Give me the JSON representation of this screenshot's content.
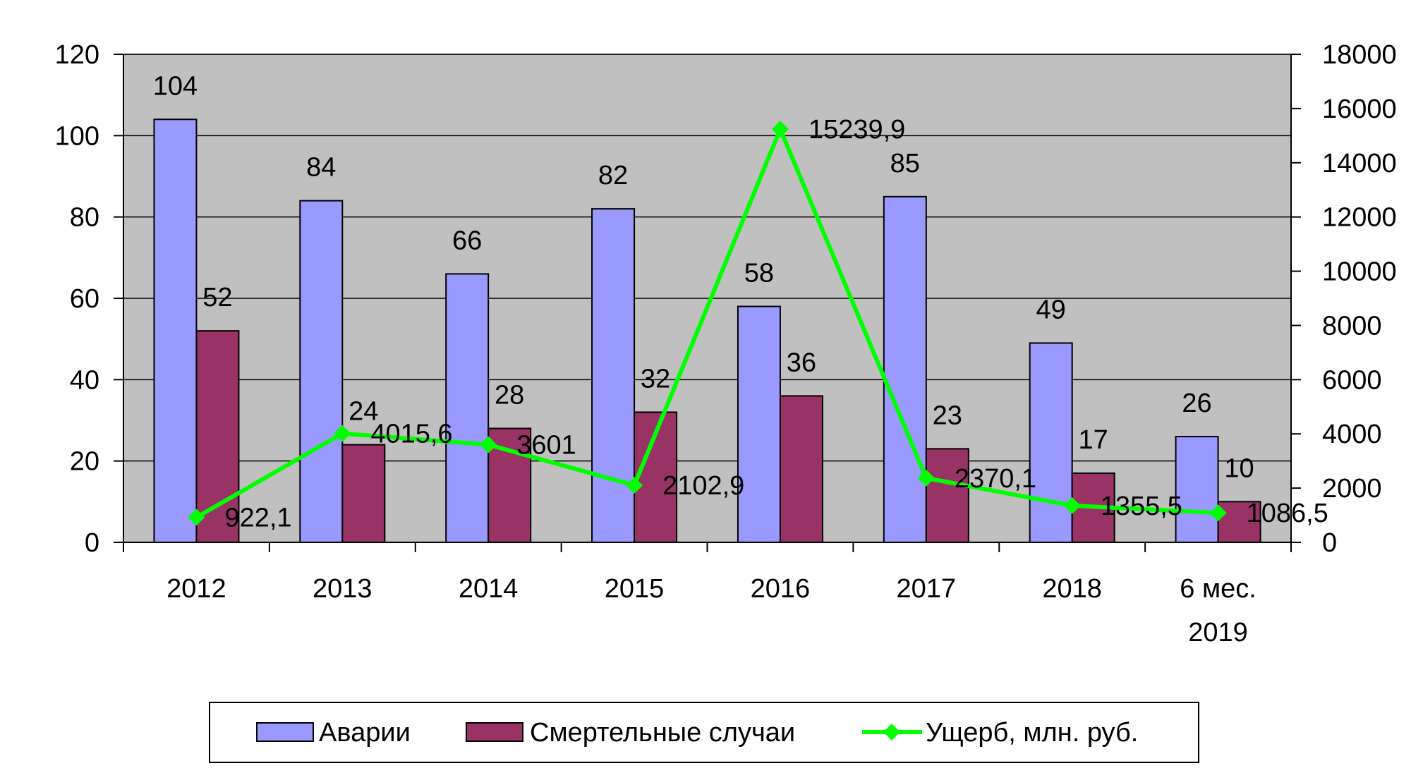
{
  "chart_data": {
    "type": "bar",
    "categories": [
      "2012",
      "2013",
      "2014",
      "2015",
      "2016",
      "2017",
      "2018",
      "6 мес. 2019"
    ],
    "category_lines": [
      [
        "2012"
      ],
      [
        "2013"
      ],
      [
        "2014"
      ],
      [
        "2015"
      ],
      [
        "2016"
      ],
      [
        "2017"
      ],
      [
        "2018"
      ],
      [
        "6 мес.",
        "2019"
      ]
    ],
    "series": [
      {
        "name": "Аварии",
        "kind": "bar",
        "axis": "left",
        "color": "#9999ff",
        "values": [
          104,
          84,
          66,
          82,
          58,
          85,
          49,
          26
        ],
        "labels": [
          "104",
          "84",
          "66",
          "82",
          "58",
          "85",
          "49",
          "26"
        ]
      },
      {
        "name": "Смертельные случаи",
        "kind": "bar",
        "axis": "left",
        "color": "#993366",
        "values": [
          52,
          24,
          28,
          32,
          36,
          23,
          17,
          10
        ],
        "labels": [
          "52",
          "24",
          "28",
          "32",
          "36",
          "23",
          "17",
          "10"
        ]
      },
      {
        "name": "Ущерб, млн. руб.",
        "kind": "line",
        "axis": "right",
        "color": "#00ff00",
        "values": [
          922.1,
          4015.6,
          3601,
          2102.9,
          15239.9,
          2370.1,
          1355.5,
          1086.5
        ],
        "labels": [
          "922,1",
          "4015,6",
          "3601",
          "2102,9",
          "15239,9",
          "2370,1",
          "1355,5",
          "1086,5"
        ]
      }
    ],
    "y_left": {
      "range": [
        0,
        120
      ],
      "ticks": [
        "0",
        "20",
        "40",
        "60",
        "80",
        "100",
        "120"
      ]
    },
    "y_right": {
      "range": [
        0,
        18000
      ],
      "ticks": [
        "0",
        "2000",
        "4000",
        "6000",
        "8000",
        "10000",
        "12000",
        "14000",
        "16000",
        "18000"
      ]
    },
    "grid": true,
    "plot_background": "#c0c0c0",
    "legend_position": "bottom"
  }
}
